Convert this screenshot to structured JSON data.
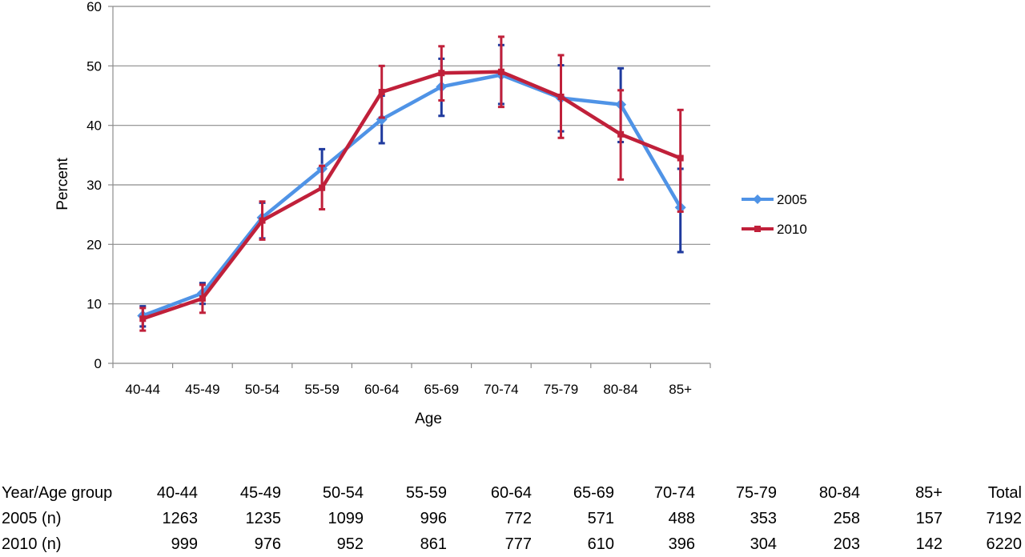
{
  "chart_data": {
    "type": "line",
    "xlabel": "Age",
    "ylabel": "Percent",
    "ylim": [
      0,
      60
    ],
    "yticks": [
      0,
      10,
      20,
      30,
      40,
      50,
      60
    ],
    "grid": true,
    "legend_position": "right",
    "categories": [
      "40-44",
      "45-49",
      "50-54",
      "55-59",
      "60-64",
      "65-69",
      "70-74",
      "75-79",
      "80-84",
      "85+"
    ],
    "series": [
      {
        "name": "2005",
        "color": "#4f93e6",
        "error_color": "#1f3a9e",
        "marker": "diamond",
        "values": [
          8.0,
          11.8,
          24.5,
          32.7,
          41.0,
          46.5,
          48.5,
          44.6,
          43.5,
          26.2
        ],
        "lower": [
          6.2,
          10.0,
          21.0,
          29.5,
          37.0,
          41.6,
          43.6,
          39.0,
          37.2,
          18.7
        ],
        "upper": [
          9.6,
          13.5,
          27.0,
          36.0,
          45.0,
          51.2,
          53.5,
          50.1,
          49.6,
          32.7
        ]
      },
      {
        "name": "2010",
        "color": "#c0203a",
        "error_color": "#c0203a",
        "marker": "square",
        "values": [
          7.5,
          10.9,
          24.0,
          29.5,
          45.6,
          48.8,
          49.0,
          44.8,
          38.5,
          34.5
        ],
        "lower": [
          5.5,
          8.5,
          20.8,
          25.9,
          41.3,
          44.2,
          43.1,
          37.9,
          30.9,
          25.5
        ],
        "upper": [
          9.3,
          13.2,
          27.2,
          33.2,
          50.0,
          53.3,
          54.9,
          51.8,
          45.9,
          42.6
        ]
      }
    ]
  },
  "table": {
    "header": [
      "Year/Age group",
      "40-44",
      "45-49",
      "50-54",
      "55-59",
      "60-64",
      "65-69",
      "70-74",
      "75-79",
      "80-84",
      "85+",
      "Total"
    ],
    "rows": [
      [
        "2005 (n)",
        "1263",
        "1235",
        "1099",
        "996",
        "772",
        "571",
        "488",
        "353",
        "258",
        "157",
        "7192"
      ],
      [
        "2010 (n)",
        "999",
        "976",
        "952",
        "861",
        "777",
        "610",
        "396",
        "304",
        "203",
        "142",
        "6220"
      ]
    ]
  }
}
